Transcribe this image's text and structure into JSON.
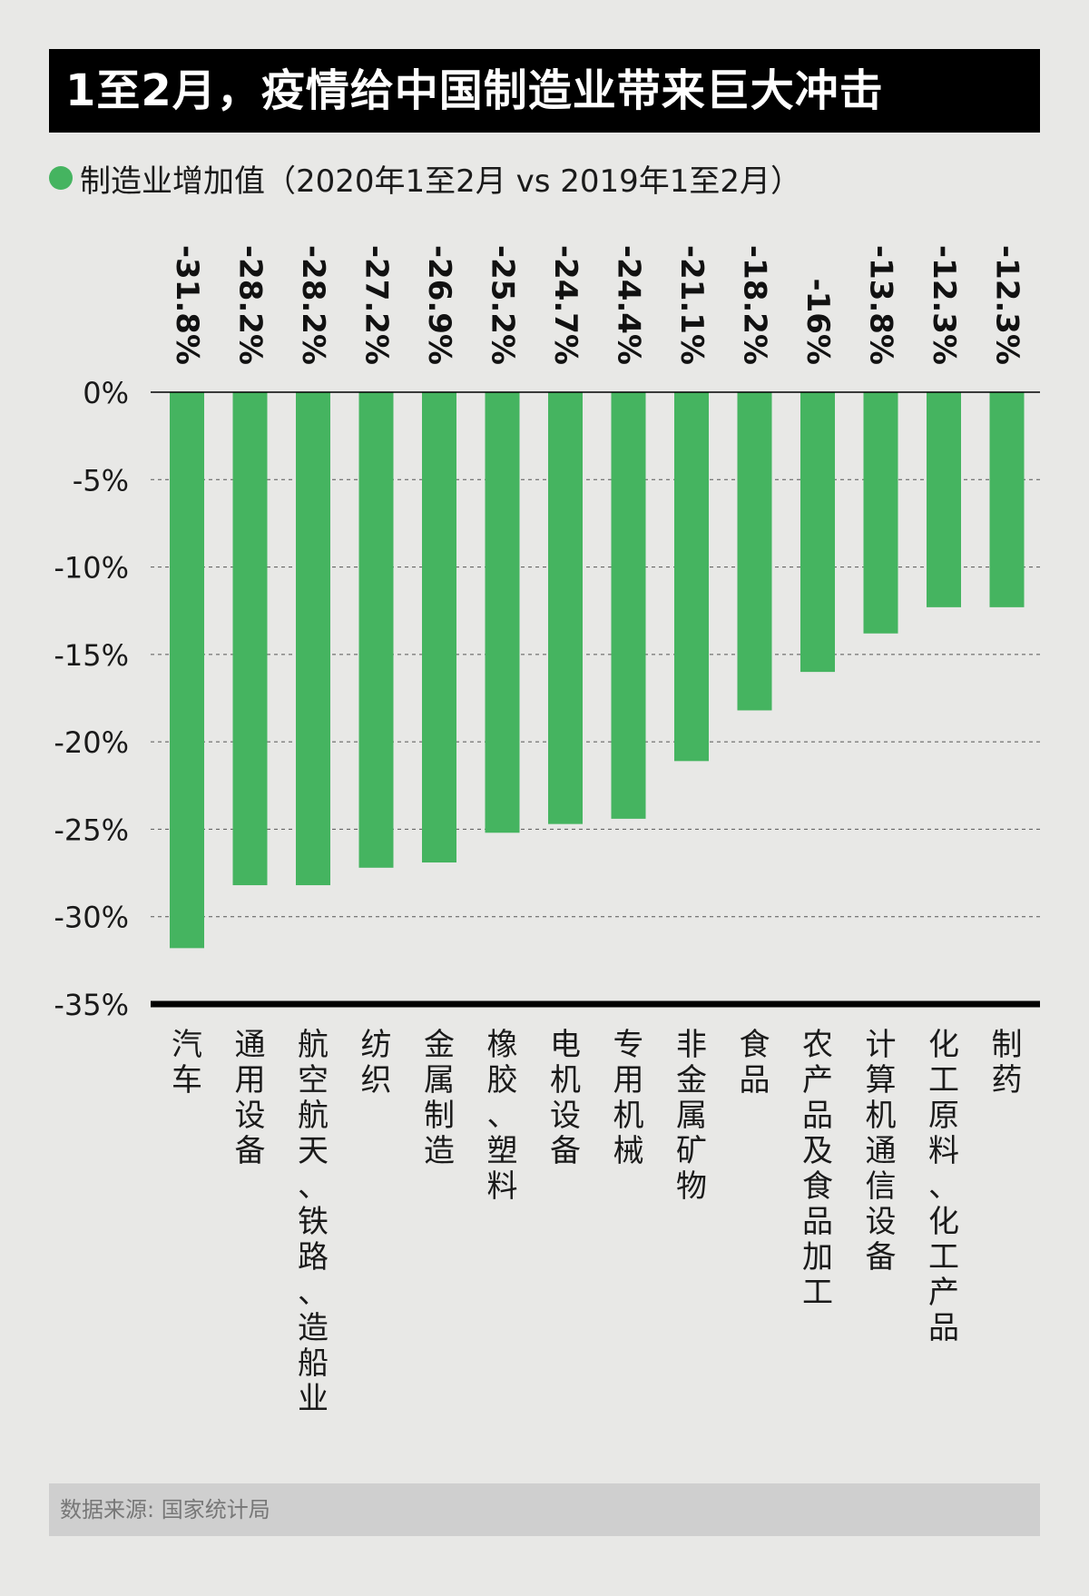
{
  "header": {
    "title": "1至2月，疫情给中国制造业带来巨大冲击"
  },
  "legend": {
    "label": "制造业增加值（2020年1至2月 vs 2019年1至2月）",
    "color": "#45b460"
  },
  "footer": {
    "source": "数据来源: 国家统计局"
  },
  "chart_data": {
    "type": "bar",
    "title": "1至2月，疫情给中国制造业带来巨大冲击",
    "categories": [
      "汽车",
      "通用设备",
      "航空航天、铁路、造船业",
      "纺织",
      "金属制造",
      "橡胶、塑料",
      "电机设备",
      "专用机械",
      "非金属矿物",
      "食品",
      "农产品及食品加工",
      "计算机通信设备",
      "化工原料、化工产品",
      "制药"
    ],
    "series": [
      {
        "name": "制造业增加值（2020年1至2月 vs 2019年1至2月）",
        "values": [
          -31.8,
          -28.2,
          -28.2,
          -27.2,
          -26.9,
          -25.2,
          -24.7,
          -24.4,
          -21.1,
          -18.2,
          -16,
          -13.8,
          -12.3,
          -12.3
        ],
        "labels": [
          "-31.8%",
          "-28.2%",
          "-28.2%",
          "-27.2%",
          "-26.9%",
          "-25.2%",
          "-24.7%",
          "-24.4%",
          "-21.1%",
          "-18.2%",
          "-16%",
          "-13.8%",
          "-12.3%",
          "-12.3%"
        ],
        "color": "#45b460"
      }
    ],
    "yticks": [
      0,
      -5,
      -10,
      -15,
      -20,
      -25,
      -30,
      -35
    ],
    "ytick_labels": [
      "0%",
      "-5%",
      "-10%",
      "-15%",
      "-20%",
      "-25%",
      "-30%",
      "-35%"
    ],
    "ylim": [
      -35,
      0
    ],
    "grid": true,
    "xlabel": "",
    "ylabel": ""
  }
}
